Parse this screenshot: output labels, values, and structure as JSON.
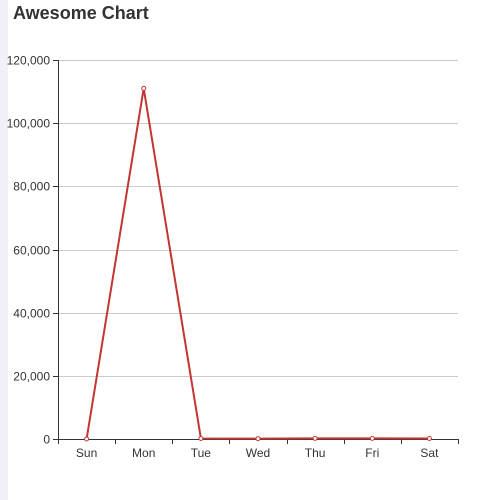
{
  "chart_data": {
    "type": "line",
    "title": "Awesome Chart",
    "categories": [
      "Sun",
      "Mon",
      "Tue",
      "Wed",
      "Thu",
      "Fri",
      "Sat"
    ],
    "series": [
      {
        "values": [
          0,
          111000,
          150,
          120,
          200,
          180,
          150
        ]
      }
    ],
    "ylim": [
      0,
      120000
    ],
    "yticks": [
      0,
      20000,
      40000,
      60000,
      80000,
      100000,
      120000
    ],
    "ytick_labels": [
      "0",
      "20,000",
      "40,000",
      "60,000",
      "80,000",
      "100,000",
      "120,000"
    ],
    "grid": true,
    "xlabel": "",
    "ylabel": "",
    "line_color": "#c23531",
    "grid_color": "#cccccc",
    "axis_color": "#333333"
  }
}
